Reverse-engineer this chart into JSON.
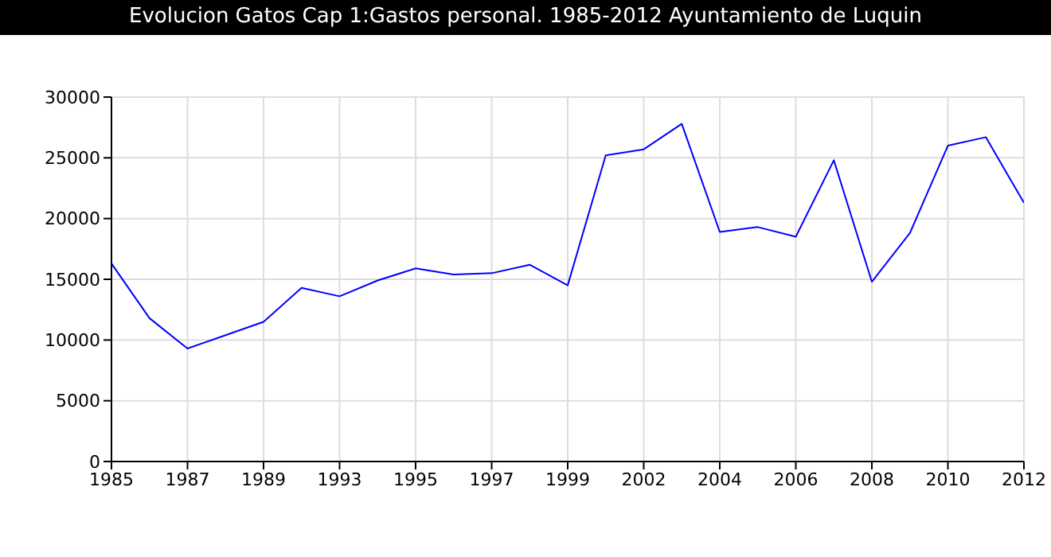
{
  "chart_data": {
    "type": "line",
    "title": "Evolucion Gatos Cap 1:Gastos personal. 1985-2012 Ayuntamiento de Luquin",
    "categories": [
      "1985",
      null,
      "1987",
      null,
      "1989",
      null,
      "1993",
      null,
      "1995",
      null,
      "1997",
      null,
      "1999",
      null,
      "2002",
      null,
      "2004",
      null,
      "2006",
      null,
      "2008",
      null,
      "2010",
      null,
      "2012"
    ],
    "series": [
      {
        "color": "#0000ff",
        "values": [
          16300,
          11800,
          9300,
          10400,
          11500,
          14300,
          13600,
          14900,
          15900,
          15400,
          15500,
          16200,
          14500,
          25200,
          25700,
          27800,
          18900,
          19300,
          18500,
          24800,
          14800,
          18800,
          26000,
          26700,
          21300
        ]
      }
    ],
    "ylim": [
      0,
      30000
    ],
    "yticks": [
      0,
      5000,
      10000,
      15000,
      20000,
      25000,
      30000
    ],
    "grid": true,
    "marker": "none"
  }
}
